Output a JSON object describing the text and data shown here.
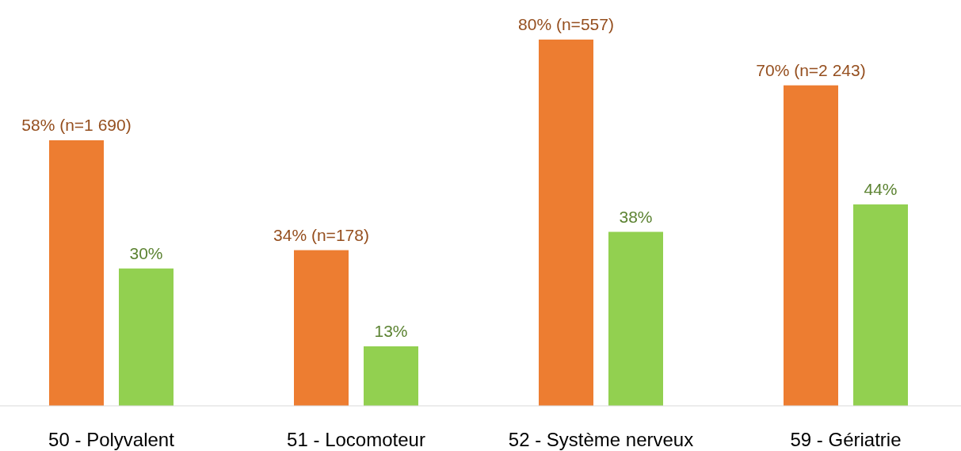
{
  "chart_data": {
    "type": "bar",
    "categories": [
      "50 - Polyvalent",
      "51 - Locomoteur",
      "52 - Système nerveux",
      "59 - Gériatrie"
    ],
    "series": [
      {
        "color": "#ed7d31",
        "values": [
          58,
          34,
          80,
          70
        ],
        "value_labels": [
          "58% (n=1 690)",
          "34% (n=178)",
          "80% (n=557)",
          "70% (n=2 243)"
        ]
      },
      {
        "color": "#92d050",
        "values": [
          30,
          13,
          38,
          44
        ],
        "value_labels": [
          "30%",
          "13%",
          "38%",
          "44%"
        ]
      }
    ],
    "tick_labels": "x",
    "grid": false
  }
}
